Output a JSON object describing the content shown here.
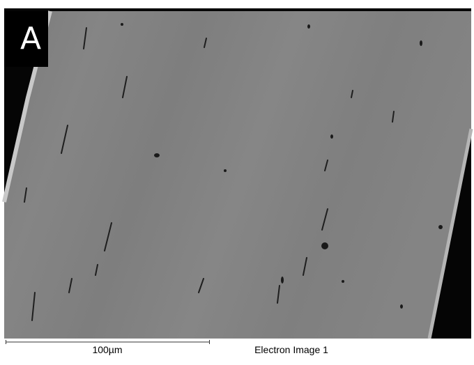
{
  "panel_label": "A",
  "scale_bar": {
    "label": "100µm"
  },
  "caption": "Electron Image 1"
}
